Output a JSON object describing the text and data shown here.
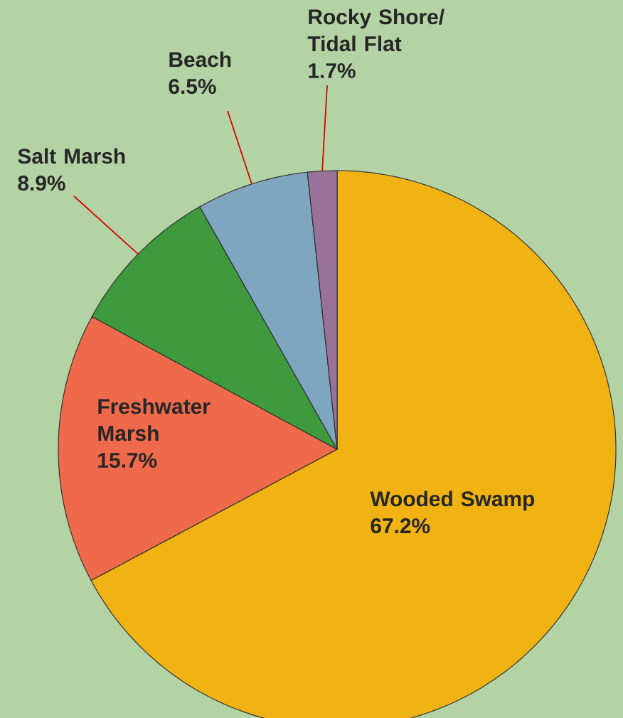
{
  "chart_data": {
    "type": "pie",
    "categories": [
      "Wooded Swamp",
      "Freshwater Marsh",
      "Salt Marsh",
      "Beach",
      "Rocky Shore/ Tidal Flat"
    ],
    "values": [
      67.2,
      15.7,
      8.9,
      6.5,
      1.7
    ],
    "value_labels": [
      "67.2%",
      "15.7%",
      "8.9%",
      "6.5%",
      "1.7%"
    ],
    "colors": [
      "#f0b313",
      "#ef694b",
      "#3f9a3e",
      "#7fa6bf",
      "#9a7299"
    ]
  }
}
